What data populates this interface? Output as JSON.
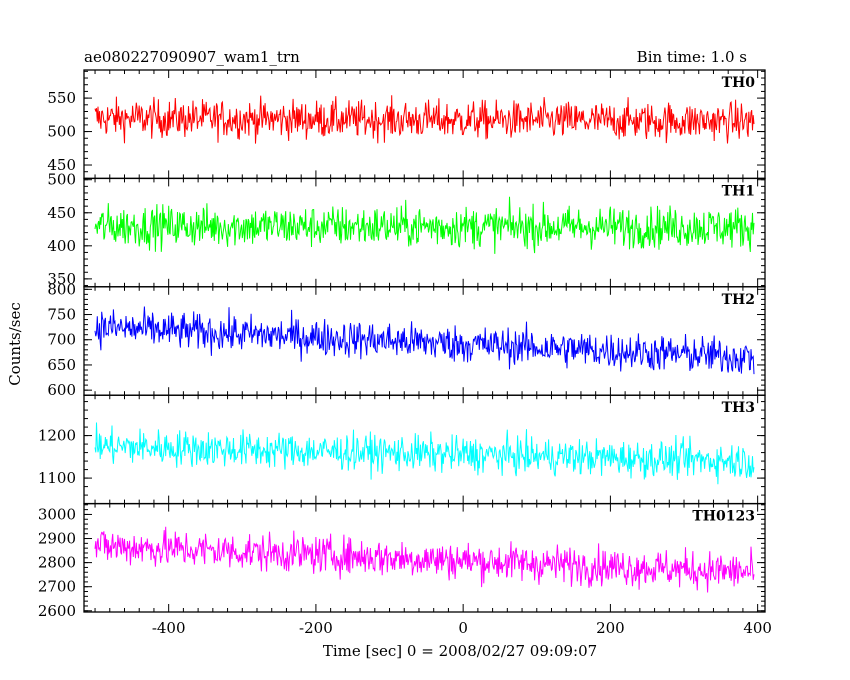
{
  "header": {
    "title": "ae080227090907_wam1_trn",
    "bin_time": "Bin time: 1.0 s"
  },
  "chart_data": {
    "type": "line",
    "xlabel": "Time [sec] 0 = 2008/02/27 09:09:07",
    "ylabel": "Counts/sec",
    "xlim": [
      -515,
      410
    ],
    "x_ticks": [
      -400,
      -200,
      0,
      200,
      400
    ],
    "x_range": [
      -500,
      395
    ],
    "grid": false,
    "series": [
      {
        "name": "TH0",
        "color": "#ff0000",
        "ylim": [
          430,
          592
        ],
        "y_ticks": [
          450,
          500,
          550
        ],
        "mean_start": 520,
        "mean_end": 515,
        "noise": 20
      },
      {
        "name": "TH1",
        "color": "#00ff00",
        "ylim": [
          338,
          502
        ],
        "y_ticks": [
          350,
          400,
          450,
          500
        ],
        "mean_start": 430,
        "mean_end": 428,
        "noise": 22
      },
      {
        "name": "TH2",
        "color": "#0000ff",
        "ylim": [
          590,
          805
        ],
        "y_ticks": [
          600,
          650,
          700,
          750,
          800
        ],
        "mean_start": 725,
        "mean_end": 665,
        "noise": 26
      },
      {
        "name": "TH3",
        "color": "#00ffff",
        "ylim": [
          1040,
          1295
        ],
        "y_ticks": [
          1100,
          1200
        ],
        "mean_start": 1175,
        "mean_end": 1140,
        "noise": 30
      },
      {
        "name": "TH0123",
        "color": "#ff00ff",
        "ylim": [
          2595,
          3045
        ],
        "y_ticks": [
          2600,
          2700,
          2800,
          2900,
          3000
        ],
        "mean_start": 2870,
        "mean_end": 2760,
        "noise": 55
      }
    ]
  }
}
